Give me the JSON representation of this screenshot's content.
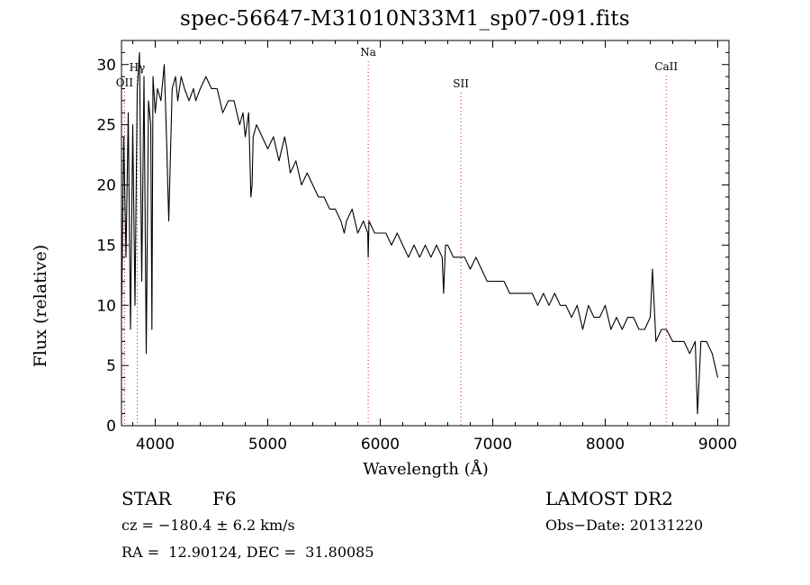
{
  "title": "spec-56647-M31010N33M1_sp07-091.fits",
  "footer": {
    "object_class": "STAR",
    "subclass": "F6",
    "survey": "LAMOST DR2",
    "cz": "cz = −180.4 ± 6.2 km/s",
    "obs_date": "Obs−Date: 20131220",
    "coords": "RA =  12.90124, DEC =  31.80085"
  },
  "chart_data": {
    "type": "line",
    "title": "spec-56647-M31010N33M1_sp07-091.fits",
    "xlabel": "Wavelength (Å)",
    "ylabel": "Flux (relative)",
    "xlim": [
      3700,
      9100
    ],
    "ylim": [
      0,
      32
    ],
    "xticks": [
      4000,
      5000,
      6000,
      7000,
      8000,
      9000
    ],
    "yticks": [
      0,
      5,
      10,
      15,
      20,
      25,
      30
    ],
    "grid": false,
    "line_color": "#000000",
    "marker_color": "#d02020",
    "spectral_lines": [
      {
        "label": "OII",
        "x": 3727
      },
      {
        "label": "Hγ",
        "x": 3840
      },
      {
        "label": "Na",
        "x": 5893
      },
      {
        "label": "SII",
        "x": 6717
      },
      {
        "label": "CaII",
        "x": 8542
      }
    ],
    "series": [
      {
        "x": [
          3700,
          3720,
          3740,
          3760,
          3780,
          3800,
          3820,
          3840,
          3860,
          3880,
          3900,
          3920,
          3940,
          3960,
          3970,
          3980,
          4000,
          4020,
          4050,
          4080,
          4100,
          4120,
          4150,
          4180,
          4200,
          4230,
          4260,
          4300,
          4340,
          4360,
          4400,
          4450,
          4500,
          4550,
          4600,
          4650,
          4700,
          4750,
          4780,
          4800,
          4830,
          4850,
          4861,
          4870,
          4900,
          4950,
          5000,
          5050,
          5100,
          5150,
          5170,
          5200,
          5250,
          5300,
          5350,
          5400,
          5450,
          5500,
          5550,
          5600,
          5650,
          5680,
          5700,
          5750,
          5800,
          5850,
          5889,
          5893,
          5900,
          5950,
          6000,
          6050,
          6100,
          6150,
          6200,
          6250,
          6300,
          6350,
          6400,
          6450,
          6500,
          6550,
          6563,
          6580,
          6600,
          6650,
          6700,
          6750,
          6800,
          6850,
          6900,
          6950,
          7000,
          7050,
          7100,
          7150,
          7200,
          7250,
          7300,
          7350,
          7400,
          7450,
          7500,
          7550,
          7600,
          7650,
          7700,
          7750,
          7800,
          7850,
          7900,
          7950,
          8000,
          8050,
          8100,
          8150,
          8200,
          8250,
          8300,
          8350,
          8400,
          8420,
          8450,
          8500,
          8542,
          8600,
          8650,
          8700,
          8750,
          8800,
          8820,
          8850,
          8900,
          8950,
          9000
        ],
        "y": [
          9,
          24,
          14,
          26,
          8,
          25,
          10,
          28,
          31,
          12,
          29,
          6,
          27,
          25,
          8,
          29,
          26,
          28,
          27,
          30,
          24,
          17,
          28,
          29,
          27,
          29,
          28,
          27,
          28,
          27,
          28,
          29,
          28,
          28,
          26,
          27,
          27,
          25,
          26,
          24,
          26,
          19,
          20,
          24,
          25,
          24,
          23,
          24,
          22,
          24,
          23,
          21,
          22,
          20,
          21,
          20,
          19,
          19,
          18,
          18,
          17,
          16,
          17,
          18,
          16,
          17,
          16,
          14,
          17,
          16,
          16,
          16,
          15,
          16,
          15,
          14,
          15,
          14,
          15,
          14,
          15,
          14,
          11,
          15,
          15,
          14,
          14,
          14,
          13,
          14,
          13,
          12,
          12,
          12,
          12,
          11,
          11,
          11,
          11,
          11,
          10,
          11,
          10,
          11,
          10,
          10,
          9,
          10,
          8,
          10,
          9,
          9,
          10,
          8,
          9,
          8,
          9,
          9,
          8,
          8,
          9,
          13,
          7,
          8,
          8,
          7,
          7,
          7,
          6,
          7,
          1,
          7,
          7,
          6,
          4
        ]
      }
    ]
  }
}
